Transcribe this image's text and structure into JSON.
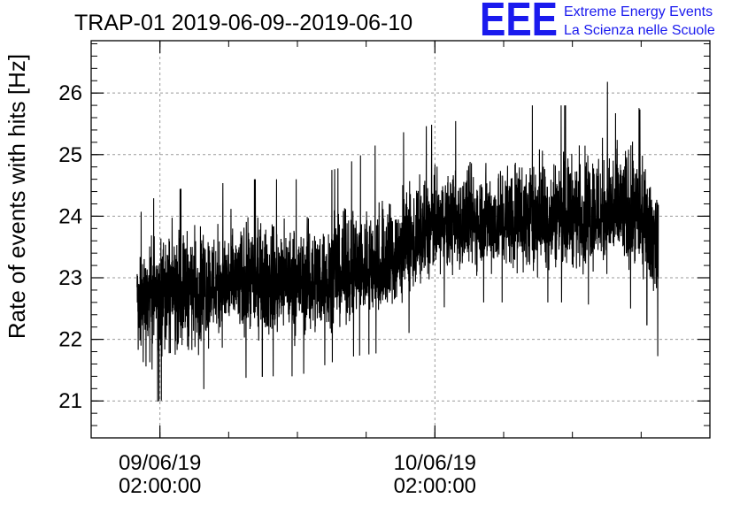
{
  "logo": {
    "mark": "EEE",
    "line1": "Extreme Energy Events",
    "line2": "La Scienza nelle Scuole",
    "color": "#1a1aee"
  },
  "chart_data": {
    "type": "line",
    "title": "TRAP-01 2019-06-09--2019-06-10",
    "xlabel": "",
    "ylabel": "Rate of events with hits [Hz]",
    "ylim": [
      20.4,
      26.85
    ],
    "xlim": [
      "2019-06-08 20:00:00",
      "2019-06-11 02:00:00"
    ],
    "y_ticks": [
      21,
      22,
      23,
      24,
      25,
      26
    ],
    "x_ticks": [
      {
        "x": "2019-06-09 02:00:00",
        "date_label": "09/06/19",
        "time_label": "02:00:00"
      },
      {
        "x": "2019-06-10 02:00:00",
        "date_label": "10/06/19",
        "time_label": "02:00:00"
      }
    ],
    "grid": true,
    "line_color": "#000000",
    "series": [
      {
        "x": [
          "2019-06-09 00:00:00",
          "2019-06-09 02:00:00",
          "2019-06-09 06:00:00",
          "2019-06-09 10:00:00",
          "2019-06-09 14:00:00",
          "2019-06-09 18:00:00",
          "2019-06-09 22:00:00",
          "2019-06-10 02:00:00",
          "2019-06-10 06:00:00",
          "2019-06-10 10:00:00",
          "2019-06-10 14:00:00",
          "2019-06-10 18:00:00",
          "2019-06-10 20:00:00",
          "2019-06-10 21:30:00"
        ],
        "y": [
          22.7,
          22.8,
          22.9,
          22.9,
          22.9,
          23.0,
          23.2,
          23.8,
          23.9,
          23.9,
          24.0,
          24.0,
          23.9,
          23.8
        ],
        "y_low": [
          20.9,
          21.0,
          21.2,
          21.4,
          21.4,
          21.7,
          21.8,
          22.5,
          22.6,
          22.6,
          22.6,
          22.5,
          22.5,
          21.7
        ],
        "y_high": [
          24.0,
          24.4,
          24.5,
          24.6,
          24.6,
          24.8,
          25.3,
          25.5,
          25.6,
          25.8,
          25.8,
          26.3,
          25.7,
          24.5
        ]
      }
    ]
  }
}
